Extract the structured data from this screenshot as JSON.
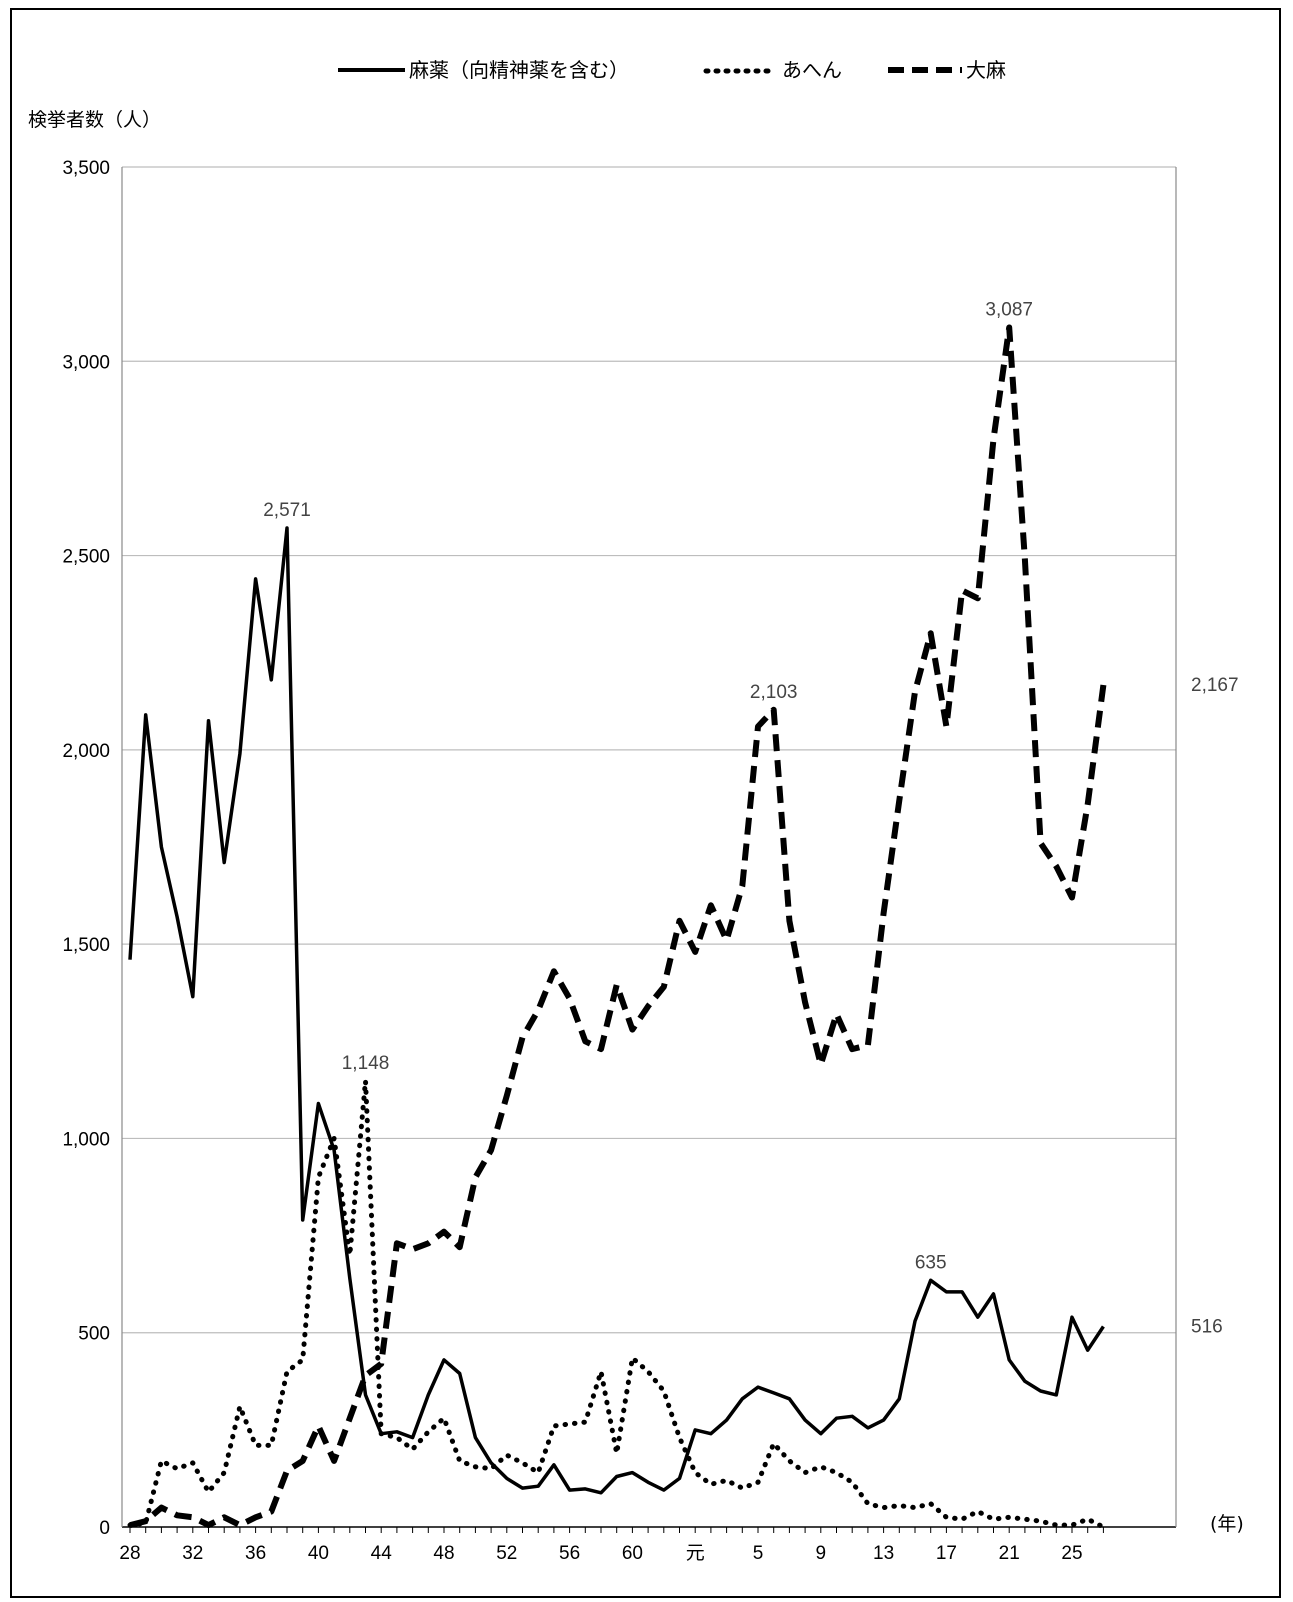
{
  "chart_data": {
    "type": "line",
    "ylabel": "検挙者数（人）",
    "xunit": "(年)",
    "ylim": [
      0,
      3500
    ],
    "yticks": [
      "0",
      "500",
      "1,000",
      "1,500",
      "2,000",
      "2,500",
      "3,000",
      "3,500"
    ],
    "ytick_values": [
      0,
      500,
      1000,
      1500,
      2000,
      2500,
      3000,
      3500
    ],
    "grid": "horizontal",
    "legend_position": "top",
    "x_tick_labels": [
      "28",
      "32",
      "36",
      "40",
      "44",
      "48",
      "52",
      "56",
      "60",
      "元",
      "5",
      "9",
      "13",
      "17",
      "21",
      "25"
    ],
    "x_tick_index": [
      0,
      4,
      8,
      12,
      16,
      20,
      24,
      28,
      32,
      36,
      40,
      44,
      48,
      52,
      56,
      60
    ],
    "x": [
      "28",
      "29",
      "30",
      "31",
      "32",
      "33",
      "34",
      "35",
      "36",
      "37",
      "38",
      "39",
      "40",
      "41",
      "42",
      "43",
      "44",
      "45",
      "46",
      "47",
      "48",
      "49",
      "50",
      "51",
      "52",
      "53",
      "54",
      "55",
      "56",
      "57",
      "58",
      "59",
      "60",
      "61",
      "62",
      "63",
      "元",
      "2",
      "3",
      "4",
      "5",
      "6",
      "7",
      "8",
      "9",
      "10",
      "11",
      "12",
      "13",
      "14",
      "15",
      "16",
      "17",
      "18",
      "19",
      "20",
      "21",
      "22",
      "23",
      "24",
      "25",
      "26",
      "27"
    ],
    "series": [
      {
        "name": "麻薬（向精神薬を含む）",
        "style": "solid",
        "values": [
          1460,
          2090,
          1750,
          1570,
          1365,
          2075,
          1710,
          1990,
          2440,
          2180,
          2571,
          790,
          1090,
          970,
          640,
          340,
          240,
          245,
          230,
          340,
          430,
          395,
          230,
          165,
          125,
          100,
          105,
          160,
          95,
          98,
          88,
          130,
          140,
          115,
          95,
          125,
          250,
          240,
          275,
          330,
          360,
          345,
          330,
          275,
          240,
          280,
          285,
          255,
          275,
          330,
          530,
          635,
          605,
          605,
          540,
          600,
          430,
          375,
          350,
          340,
          540,
          455,
          516
        ]
      },
      {
        "name": "あへん",
        "style": "dotted",
        "values": [
          5,
          10,
          170,
          150,
          165,
          90,
          140,
          310,
          210,
          210,
          400,
          430,
          900,
          1000,
          700,
          1148,
          240,
          230,
          200,
          245,
          280,
          170,
          155,
          150,
          185,
          165,
          140,
          260,
          265,
          270,
          400,
          190,
          435,
          400,
          350,
          230,
          140,
          110,
          120,
          100,
          115,
          215,
          170,
          140,
          155,
          140,
          115,
          60,
          50,
          55,
          50,
          60,
          25,
          20,
          40,
          20,
          25,
          20,
          15,
          5,
          5,
          20,
          0
        ]
      },
      {
        "name": "大麻",
        "style": "dashed",
        "values": [
          5,
          15,
          50,
          30,
          25,
          5,
          25,
          5,
          25,
          40,
          145,
          170,
          260,
          170,
          280,
          390,
          420,
          730,
          715,
          730,
          760,
          720,
          900,
          970,
          1110,
          1260,
          1330,
          1430,
          1360,
          1250,
          1230,
          1395,
          1280,
          1340,
          1390,
          1560,
          1480,
          1600,
          1510,
          1650,
          2060,
          2103,
          1560,
          1350,
          1190,
          1320,
          1230,
          1240,
          1580,
          1870,
          2150,
          2300,
          2060,
          2410,
          2390,
          2800,
          3087,
          2490,
          1760,
          1700,
          1620,
          1860,
          2167
        ]
      }
    ],
    "annotations": [
      {
        "series": 0,
        "index": 10,
        "text": "2,571",
        "side": "above"
      },
      {
        "series": 1,
        "index": 15,
        "text": "1,148",
        "side": "above"
      },
      {
        "series": 2,
        "index": 41,
        "text": "2,103",
        "side": "above"
      },
      {
        "series": 2,
        "index": 56,
        "text": "3,087",
        "side": "above"
      },
      {
        "series": 0,
        "index": 51,
        "text": "635",
        "side": "above"
      },
      {
        "series": 2,
        "index": 62,
        "text": "2,167",
        "side": "right"
      },
      {
        "series": 0,
        "index": 62,
        "text": "516",
        "side": "right"
      }
    ]
  }
}
